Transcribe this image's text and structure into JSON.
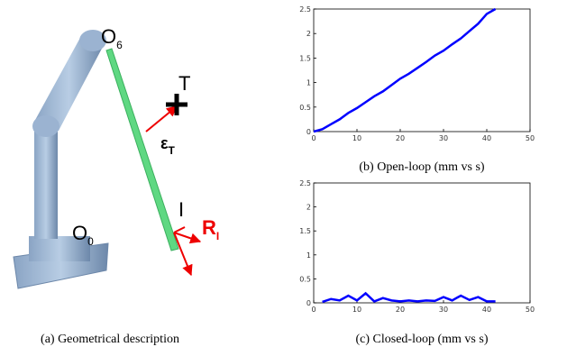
{
  "diagram": {
    "caption": "(a) Geometrical description",
    "labels": [
      {
        "text": "O",
        "sub": "6"
      },
      {
        "text": "T"
      },
      {
        "text": "ε",
        "sub": "T"
      },
      {
        "text": "I"
      },
      {
        "text": "R",
        "sub": "I"
      },
      {
        "text": "O",
        "sub": "0"
      }
    ]
  },
  "chart_data": [
    {
      "type": "line",
      "caption": "(b) Open-loop (mm vs s)",
      "x": [
        0,
        2,
        4,
        6,
        8,
        10,
        12,
        14,
        16,
        18,
        20,
        22,
        24,
        26,
        28,
        30,
        32,
        34,
        36,
        38,
        40,
        42
      ],
      "series": [
        {
          "color": "#0000ff",
          "values": [
            0,
            0.05,
            0.15,
            0.25,
            0.38,
            0.48,
            0.6,
            0.72,
            0.82,
            0.95,
            1.08,
            1.18,
            1.3,
            1.42,
            1.55,
            1.65,
            1.78,
            1.9,
            2.05,
            2.2,
            2.4,
            2.5
          ]
        }
      ],
      "xlim": [
        0,
        50
      ],
      "xticks": [
        0,
        10,
        20,
        30,
        40,
        50
      ],
      "ylim": [
        0,
        2.5
      ],
      "yticks": [
        0,
        0.5,
        1,
        1.5,
        2,
        2.5
      ]
    },
    {
      "type": "line",
      "caption": "(c) Closed-loop (mm vs s)",
      "x": [
        2,
        4,
        6,
        8,
        10,
        12,
        14,
        16,
        18,
        20,
        22,
        24,
        26,
        28,
        30,
        32,
        34,
        36,
        38,
        40,
        42
      ],
      "series": [
        {
          "color": "#0000ff",
          "values": [
            0.02,
            0.08,
            0.05,
            0.15,
            0.05,
            0.2,
            0.03,
            0.1,
            0.05,
            0.03,
            0.05,
            0.03,
            0.05,
            0.04,
            0.12,
            0.05,
            0.15,
            0.06,
            0.12,
            0.03,
            0.03
          ]
        }
      ],
      "xlim": [
        0,
        50
      ],
      "xticks": [
        0,
        10,
        20,
        30,
        40,
        50
      ],
      "ylim": [
        0,
        2.5
      ],
      "yticks": [
        0,
        0.5,
        1,
        1.5,
        2,
        2.5
      ]
    }
  ]
}
